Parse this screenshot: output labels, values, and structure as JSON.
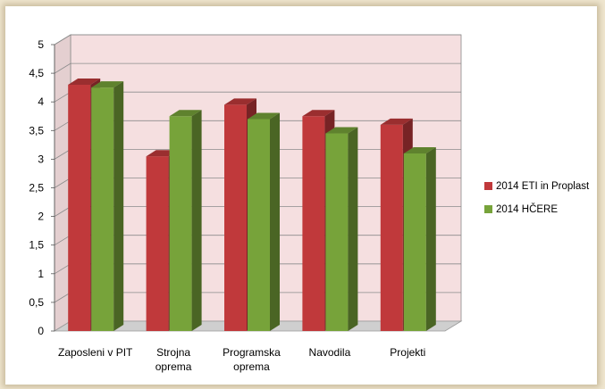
{
  "chart_data": {
    "type": "bar",
    "categories": [
      "Zaposleni v PIT",
      "Strojna oprema",
      "Programska oprema",
      "Navodila",
      "Projekti"
    ],
    "category_lines": [
      [
        "Zaposleni v PIT"
      ],
      [
        "Strojna",
        "oprema"
      ],
      [
        "Programska",
        "oprema"
      ],
      [
        "Navodila"
      ],
      [
        "Projekti"
      ]
    ],
    "series": [
      {
        "name": "2014 ETI in Proplast",
        "color": "#c0393b",
        "values": [
          4.3,
          3.05,
          3.95,
          3.75,
          3.6
        ]
      },
      {
        "name": "2014 HČERE",
        "color": "#77a33a",
        "values": [
          4.25,
          3.75,
          3.7,
          3.45,
          3.1
        ]
      }
    ],
    "y_ticks": [
      "0",
      "0,5",
      "1",
      "1,5",
      "2",
      "2,5",
      "3",
      "3,5",
      "4",
      "4,5",
      "5"
    ],
    "ylim": [
      0,
      5
    ],
    "grid": true,
    "three_d": true,
    "plot_background": "#f5dfe0",
    "legend_position": "right"
  }
}
